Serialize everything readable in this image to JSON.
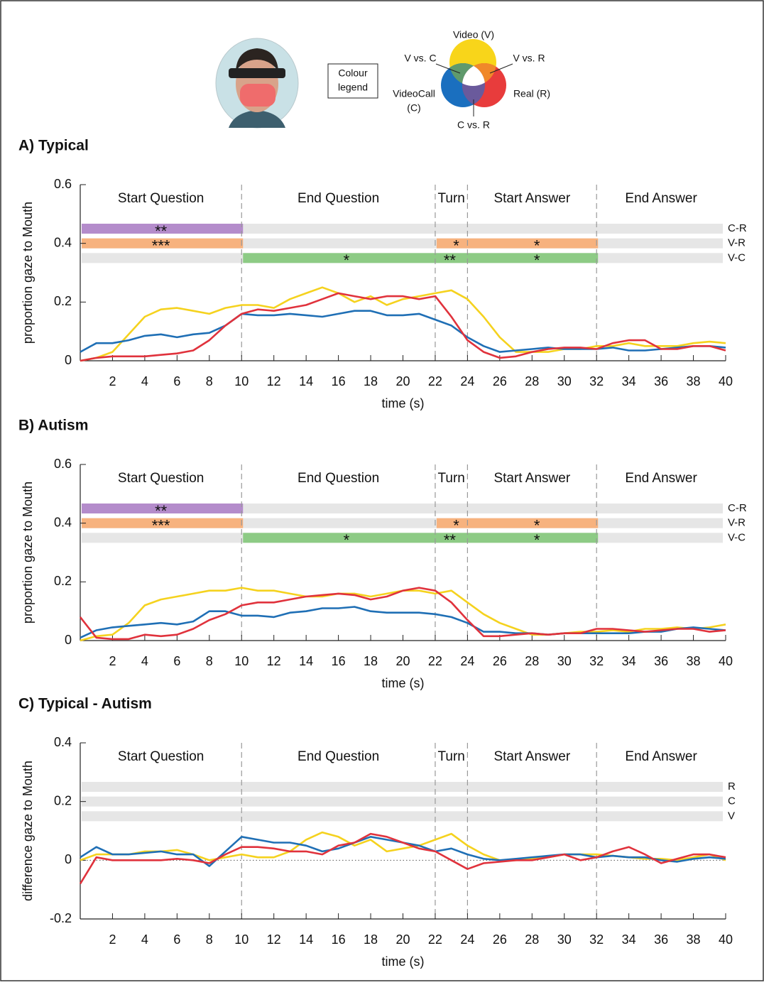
{
  "legend": {
    "title": [
      "Colour",
      "legend"
    ],
    "video": "Video (V)",
    "video_vs_call": "V vs. C",
    "video_vs_real": "V vs. R",
    "videocall": [
      "VideoCall",
      "(C)"
    ],
    "real": "Real (R)",
    "call_vs_real": "C vs. R"
  },
  "chart_data": [
    {
      "type": "line",
      "title": "A) Typical",
      "xlabel": "time (s)",
      "ylabel": "proportion gaze to Mouth",
      "xlim": [
        0,
        40
      ],
      "ylim": [
        0,
        0.6
      ],
      "xticks": [
        2,
        4,
        6,
        8,
        10,
        12,
        14,
        16,
        18,
        20,
        22,
        24,
        26,
        28,
        30,
        32,
        34,
        36,
        38,
        40
      ],
      "yticks": [
        0,
        0.2,
        0.4,
        0.6
      ],
      "phase_boundaries": [
        10,
        22,
        24,
        32
      ],
      "phases": [
        "Start Question",
        "End Question",
        "Turn",
        "Start Answer",
        "End Answer"
      ],
      "significance_rows": [
        {
          "label": "C-R",
          "y": 0.45,
          "segments": [
            {
              "start": 0,
              "end": 10,
              "color": "#b48ccb",
              "stars": [
                {
                  "x": 5,
                  "text": "**"
                }
              ]
            }
          ]
        },
        {
          "label": "V-R",
          "y": 0.4,
          "segments": [
            {
              "start": 0,
              "end": 10,
              "color": "#f7b27e",
              "stars": [
                {
                  "x": 5,
                  "text": "***"
                }
              ]
            },
            {
              "start": 22,
              "end": 32,
              "color": "#f7b27e",
              "stars": [
                {
                  "x": 23.3,
                  "text": "*"
                },
                {
                  "x": 28.3,
                  "text": "*"
                }
              ]
            }
          ]
        },
        {
          "label": "V-C",
          "y": 0.35,
          "segments": [
            {
              "start": 10,
              "end": 32,
              "color": "#8dcb85",
              "stars": [
                {
                  "x": 16.5,
                  "text": "*"
                },
                {
                  "x": 22.9,
                  "text": "**"
                },
                {
                  "x": 28.3,
                  "text": "*"
                }
              ]
            }
          ]
        }
      ],
      "x": [
        0,
        1,
        2,
        3,
        4,
        5,
        6,
        7,
        8,
        9,
        10,
        11,
        12,
        13,
        14,
        15,
        16,
        17,
        18,
        19,
        20,
        21,
        22,
        23,
        24,
        25,
        26,
        27,
        28,
        29,
        30,
        31,
        32,
        33,
        34,
        35,
        36,
        37,
        38,
        39,
        40
      ],
      "series": [
        {
          "color": "#f5d21e",
          "values": [
            0,
            0.01,
            0.03,
            0.09,
            0.15,
            0.175,
            0.18,
            0.17,
            0.16,
            0.18,
            0.19,
            0.19,
            0.18,
            0.21,
            0.23,
            0.25,
            0.23,
            0.2,
            0.22,
            0.19,
            0.21,
            0.22,
            0.23,
            0.24,
            0.21,
            0.15,
            0.08,
            0.03,
            0.03,
            0.03,
            0.04,
            0.04,
            0.05,
            0.05,
            0.06,
            0.05,
            0.05,
            0.05,
            0.06,
            0.065,
            0.06
          ]
        },
        {
          "color": "#1f6fb5",
          "values": [
            0.03,
            0.06,
            0.06,
            0.07,
            0.085,
            0.09,
            0.08,
            0.09,
            0.095,
            0.12,
            0.16,
            0.155,
            0.155,
            0.16,
            0.155,
            0.15,
            0.16,
            0.17,
            0.17,
            0.155,
            0.155,
            0.16,
            0.14,
            0.12,
            0.08,
            0.05,
            0.03,
            0.035,
            0.04,
            0.045,
            0.04,
            0.04,
            0.04,
            0.045,
            0.035,
            0.035,
            0.04,
            0.045,
            0.05,
            0.05,
            0.045
          ]
        },
        {
          "color": "#e0323c",
          "values": [
            0,
            0.01,
            0.015,
            0.015,
            0.015,
            0.02,
            0.025,
            0.035,
            0.07,
            0.12,
            0.16,
            0.175,
            0.17,
            0.18,
            0.19,
            0.21,
            0.23,
            0.22,
            0.21,
            0.22,
            0.22,
            0.21,
            0.22,
            0.15,
            0.07,
            0.03,
            0.01,
            0.015,
            0.03,
            0.04,
            0.045,
            0.045,
            0.04,
            0.06,
            0.07,
            0.07,
            0.04,
            0.04,
            0.05,
            0.05,
            0.035
          ]
        }
      ]
    },
    {
      "type": "line",
      "title": "B) Autism",
      "xlabel": "time (s)",
      "ylabel": "proportion gaze to Mouth",
      "xlim": [
        0,
        40
      ],
      "ylim": [
        0,
        0.6
      ],
      "xticks": [
        2,
        4,
        6,
        8,
        10,
        12,
        14,
        16,
        18,
        20,
        22,
        24,
        26,
        28,
        30,
        32,
        34,
        36,
        38,
        40
      ],
      "yticks": [
        0,
        0.2,
        0.4,
        0.6
      ],
      "phase_boundaries": [
        10,
        22,
        24,
        32
      ],
      "phases": [
        "Start Question",
        "End Question",
        "Turn",
        "Start Answer",
        "End Answer"
      ],
      "significance_rows": [
        {
          "label": "C-R",
          "y": 0.45,
          "segments": [
            {
              "start": 0,
              "end": 10,
              "color": "#b48ccb",
              "stars": [
                {
                  "x": 5,
                  "text": "**"
                }
              ]
            }
          ]
        },
        {
          "label": "V-R",
          "y": 0.4,
          "segments": [
            {
              "start": 0,
              "end": 10,
              "color": "#f7b27e",
              "stars": [
                {
                  "x": 5,
                  "text": "***"
                }
              ]
            },
            {
              "start": 22,
              "end": 32,
              "color": "#f7b27e",
              "stars": [
                {
                  "x": 23.3,
                  "text": "*"
                },
                {
                  "x": 28.3,
                  "text": "*"
                }
              ]
            }
          ]
        },
        {
          "label": "V-C",
          "y": 0.35,
          "segments": [
            {
              "start": 10,
              "end": 32,
              "color": "#8dcb85",
              "stars": [
                {
                  "x": 16.5,
                  "text": "*"
                },
                {
                  "x": 22.9,
                  "text": "**"
                },
                {
                  "x": 28.3,
                  "text": "*"
                }
              ]
            }
          ]
        }
      ],
      "x": [
        0,
        1,
        2,
        3,
        4,
        5,
        6,
        7,
        8,
        9,
        10,
        11,
        12,
        13,
        14,
        15,
        16,
        17,
        18,
        19,
        20,
        21,
        22,
        23,
        24,
        25,
        26,
        27,
        28,
        29,
        30,
        31,
        32,
        33,
        34,
        35,
        36,
        37,
        38,
        39,
        40
      ],
      "series": [
        {
          "color": "#f5d21e",
          "values": [
            0,
            0.015,
            0.02,
            0.06,
            0.12,
            0.14,
            0.15,
            0.16,
            0.17,
            0.17,
            0.18,
            0.17,
            0.17,
            0.16,
            0.15,
            0.15,
            0.16,
            0.16,
            0.15,
            0.16,
            0.17,
            0.17,
            0.16,
            0.17,
            0.13,
            0.09,
            0.06,
            0.04,
            0.02,
            0.02,
            0.025,
            0.03,
            0.03,
            0.035,
            0.03,
            0.04,
            0.04,
            0.045,
            0.04,
            0.045,
            0.055
          ]
        },
        {
          "color": "#1f6fb5",
          "values": [
            0.01,
            0.035,
            0.045,
            0.05,
            0.055,
            0.06,
            0.055,
            0.065,
            0.1,
            0.1,
            0.085,
            0.085,
            0.08,
            0.095,
            0.1,
            0.11,
            0.11,
            0.115,
            0.1,
            0.095,
            0.095,
            0.095,
            0.09,
            0.08,
            0.06,
            0.03,
            0.03,
            0.025,
            0.025,
            0.02,
            0.025,
            0.025,
            0.025,
            0.025,
            0.025,
            0.03,
            0.03,
            0.04,
            0.045,
            0.04,
            0.035
          ]
        },
        {
          "color": "#e0323c",
          "values": [
            0.08,
            0.01,
            0.005,
            0.005,
            0.02,
            0.015,
            0.02,
            0.04,
            0.07,
            0.09,
            0.12,
            0.13,
            0.13,
            0.14,
            0.15,
            0.155,
            0.16,
            0.155,
            0.14,
            0.15,
            0.17,
            0.18,
            0.17,
            0.13,
            0.07,
            0.015,
            0.015,
            0.02,
            0.025,
            0.02,
            0.025,
            0.025,
            0.04,
            0.04,
            0.035,
            0.03,
            0.035,
            0.04,
            0.04,
            0.03,
            0.035
          ]
        }
      ]
    },
    {
      "type": "line",
      "title": "C) Typical - Autism",
      "xlabel": "time (s)",
      "ylabel": "difference gaze to Mouth",
      "xlim": [
        0,
        40
      ],
      "ylim": [
        -0.2,
        0.4
      ],
      "xticks": [
        2,
        4,
        6,
        8,
        10,
        12,
        14,
        16,
        18,
        20,
        22,
        24,
        26,
        28,
        30,
        32,
        34,
        36,
        38,
        40
      ],
      "yticks": [
        -0.2,
        0,
        0.2,
        0.4
      ],
      "phase_boundaries": [
        10,
        22,
        24,
        32
      ],
      "phases": [
        "Start Question",
        "End Question",
        "Turn",
        "Start Answer",
        "End Answer"
      ],
      "reference_line": 0,
      "significance_rows": [
        {
          "label": "R",
          "y": 0.25
        },
        {
          "label": "C",
          "y": 0.2
        },
        {
          "label": "V",
          "y": 0.15
        }
      ],
      "x": [
        0,
        1,
        2,
        3,
        4,
        5,
        6,
        7,
        8,
        9,
        10,
        11,
        12,
        13,
        14,
        15,
        16,
        17,
        18,
        19,
        20,
        21,
        22,
        23,
        24,
        25,
        26,
        27,
        28,
        29,
        30,
        31,
        32,
        33,
        34,
        35,
        36,
        37,
        38,
        39,
        40
      ],
      "series": [
        {
          "color": "#f5d21e",
          "values": [
            0,
            0.02,
            0.02,
            0.02,
            0.03,
            0.03,
            0.035,
            0.02,
            0,
            0.01,
            0.02,
            0.01,
            0.01,
            0.03,
            0.07,
            0.095,
            0.08,
            0.05,
            0.07,
            0.03,
            0.04,
            0.05,
            0.07,
            0.09,
            0.05,
            0.02,
            0,
            0,
            0.005,
            0.01,
            0.02,
            0.02,
            0.02,
            0.015,
            0.01,
            0.005,
            0.005,
            0,
            0.01,
            0.02,
            0
          ]
        },
        {
          "color": "#1f6fb5",
          "values": [
            0.01,
            0.045,
            0.02,
            0.02,
            0.025,
            0.03,
            0.02,
            0.02,
            -0.02,
            0.03,
            0.08,
            0.07,
            0.06,
            0.06,
            0.05,
            0.03,
            0.04,
            0.06,
            0.08,
            0.07,
            0.06,
            0.05,
            0.03,
            0.04,
            0.02,
            0.005,
            0,
            0.005,
            0.01,
            0.015,
            0.02,
            0.02,
            0.01,
            0.015,
            0.01,
            0.01,
            0,
            -0.005,
            0.005,
            0.01,
            0.005
          ]
        },
        {
          "color": "#e0323c",
          "values": [
            -0.08,
            0.01,
            0,
            0,
            0,
            0,
            0.005,
            0,
            -0.01,
            0.02,
            0.045,
            0.045,
            0.04,
            0.03,
            0.03,
            0.02,
            0.05,
            0.06,
            0.09,
            0.08,
            0.06,
            0.04,
            0.03,
            0,
            -0.03,
            -0.01,
            -0.005,
            0,
            0,
            0.01,
            0.02,
            0,
            0.01,
            0.03,
            0.045,
            0.02,
            -0.01,
            0.005,
            0.02,
            0.02,
            0.01
          ]
        }
      ]
    }
  ]
}
